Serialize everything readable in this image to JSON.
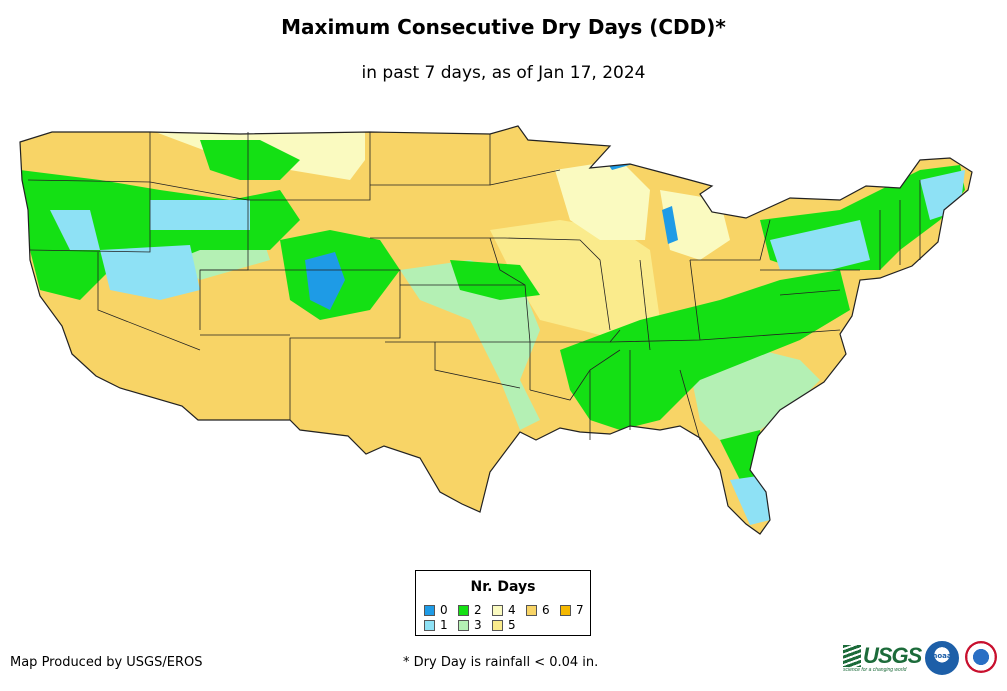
{
  "title": "Maximum Consecutive Dry Days (CDD)*",
  "subtitle": "in past 7 days, as of Jan 17, 2024",
  "legend": {
    "title": "Nr. Days",
    "items": [
      {
        "label": "0",
        "color": "#1e9be6"
      },
      {
        "label": "1",
        "color": "#8ee1f5"
      },
      {
        "label": "2",
        "color": "#14e014"
      },
      {
        "label": "3",
        "color": "#b4f0b4"
      },
      {
        "label": "4",
        "color": "#fafac0"
      },
      {
        "label": "5",
        "color": "#faeb8c"
      },
      {
        "label": "6",
        "color": "#f8d466"
      },
      {
        "label": "7",
        "color": "#f5b800"
      }
    ]
  },
  "credit": "Map Produced by USGS/EROS",
  "footnote": "* Dry Day is rainfall < 0.04 in.",
  "logos": {
    "usgs_text": "USGS",
    "usgs_tagline": "science for a changing world",
    "noaa_text": "noaa"
  }
}
